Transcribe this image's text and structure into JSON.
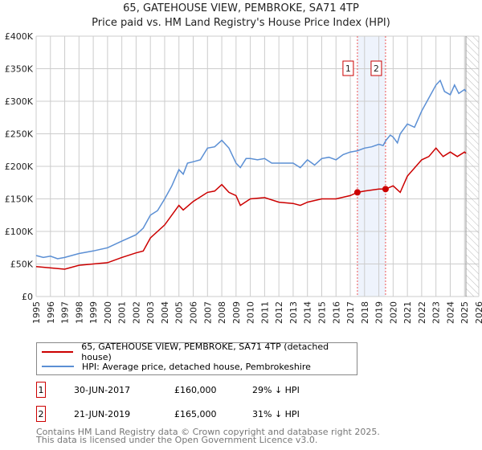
{
  "title": "65, GATEHOUSE VIEW, PEMBROKE, SA71 4TP",
  "subtitle": "Price paid vs. HM Land Registry's House Price Index (HPI)",
  "colors": {
    "property": "#cc0000",
    "hpi": "#5b8fd4",
    "shade": "#eef3fc"
  },
  "chart_data": {
    "type": "line",
    "title": "65, GATEHOUSE VIEW, PEMBROKE, SA71 4TP",
    "ylim": [
      0,
      400000
    ],
    "xlim": [
      1995,
      2026
    ],
    "yticks": [
      {
        "v": 0,
        "label": "£0"
      },
      {
        "v": 50000,
        "label": "£50K"
      },
      {
        "v": 100000,
        "label": "£100K"
      },
      {
        "v": 150000,
        "label": "£150K"
      },
      {
        "v": 200000,
        "label": "£200K"
      },
      {
        "v": 250000,
        "label": "£250K"
      },
      {
        "v": 300000,
        "label": "£300K"
      },
      {
        "v": 350000,
        "label": "£350K"
      },
      {
        "v": 400000,
        "label": "£400K"
      }
    ],
    "xticks": [
      "1995",
      "1996",
      "1997",
      "1998",
      "1999",
      "2000",
      "2001",
      "2002",
      "2003",
      "2004",
      "2005",
      "2006",
      "2007",
      "2008",
      "2009",
      "2010",
      "2011",
      "2012",
      "2013",
      "2014",
      "2015",
      "2016",
      "2017",
      "2018",
      "2019",
      "2020",
      "2021",
      "2022",
      "2023",
      "2024",
      "2025",
      "2026"
    ],
    "grid": true,
    "series": [
      {
        "name": "HPI: Average price, detached house, Pembrokeshire",
        "color": "#5b8fd4",
        "x": [
          1995,
          1995.5,
          1996,
          1996.5,
          1997,
          1998,
          1999,
          2000,
          2001,
          2002,
          2002.5,
          2003,
          2003.5,
          2004,
          2004.5,
          2005,
          2005.3,
          2005.6,
          2006,
          2006.5,
          2007,
          2007.5,
          2008,
          2008.5,
          2009,
          2009.3,
          2009.7,
          2010,
          2010.5,
          2011,
          2011.5,
          2012,
          2012.5,
          2013,
          2013.5,
          2014,
          2014.5,
          2015,
          2015.5,
          2016,
          2016.5,
          2017,
          2017.5,
          2018,
          2018.5,
          2019,
          2019.3,
          2019.5,
          2019.8,
          2020,
          2020.3,
          2020.5,
          2021,
          2021.5,
          2022,
          2022.5,
          2023,
          2023.3,
          2023.6,
          2024,
          2024.3,
          2024.6,
          2025,
          2025.1
        ],
        "y": [
          63000,
          60000,
          62000,
          58000,
          60000,
          66000,
          70000,
          75000,
          85000,
          95000,
          105000,
          125000,
          132000,
          150000,
          170000,
          195000,
          188000,
          205000,
          207000,
          210000,
          228000,
          230000,
          240000,
          228000,
          205000,
          198000,
          212000,
          212000,
          210000,
          212000,
          205000,
          205000,
          205000,
          205000,
          198000,
          210000,
          202000,
          212000,
          214000,
          210000,
          218000,
          222000,
          224000,
          228000,
          230000,
          234000,
          232000,
          240000,
          248000,
          245000,
          236000,
          250000,
          265000,
          260000,
          285000,
          305000,
          325000,
          332000,
          315000,
          310000,
          325000,
          312000,
          318000,
          315000
        ]
      },
      {
        "name": "65, GATEHOUSE VIEW, PEMBROKE, SA71 4TP (detached house)",
        "color": "#cc0000",
        "x": [
          1995,
          1996,
          1997,
          1998,
          1999,
          2000,
          2001,
          2002,
          2002.5,
          2003,
          2004,
          2005,
          2005.3,
          2006,
          2007,
          2007.5,
          2008,
          2008.5,
          2009,
          2009.3,
          2010,
          2011,
          2012,
          2013,
          2013.5,
          2014,
          2015,
          2016,
          2017,
          2017.5,
          2018,
          2019,
          2019.47,
          2020,
          2020.5,
          2021,
          2022,
          2022.5,
          2023,
          2023.5,
          2024,
          2024.5,
          2025,
          2025.1
        ],
        "y": [
          46000,
          44000,
          42000,
          48000,
          50000,
          52000,
          60000,
          67000,
          70000,
          90000,
          110000,
          140000,
          133000,
          146000,
          160000,
          162000,
          172000,
          160000,
          155000,
          140000,
          150000,
          152000,
          145000,
          143000,
          140000,
          145000,
          150000,
          150000,
          155000,
          160000,
          162000,
          165000,
          165000,
          170000,
          160000,
          185000,
          210000,
          215000,
          228000,
          215000,
          222000,
          215000,
          222000,
          220000
        ]
      }
    ],
    "sales": [
      {
        "id": "1",
        "x": 2017.5,
        "price": 160000
      },
      {
        "id": "2",
        "x": 2019.47,
        "price": 165000
      }
    ],
    "forecast_from": 2025.1
  },
  "legend": {
    "property": "65, GATEHOUSE VIEW, PEMBROKE, SA71 4TP (detached house)",
    "hpi": "HPI: Average price, detached house, Pembrokeshire"
  },
  "transactions": [
    {
      "id": "1",
      "date": "30-JUN-2017",
      "price": "£160,000",
      "delta": "29% ↓ HPI"
    },
    {
      "id": "2",
      "date": "21-JUN-2019",
      "price": "£165,000",
      "delta": "31% ↓ HPI"
    }
  ],
  "footer": {
    "line1": "Contains HM Land Registry data © Crown copyright and database right 2025.",
    "line2": "This data is licensed under the Open Government Licence v3.0."
  }
}
